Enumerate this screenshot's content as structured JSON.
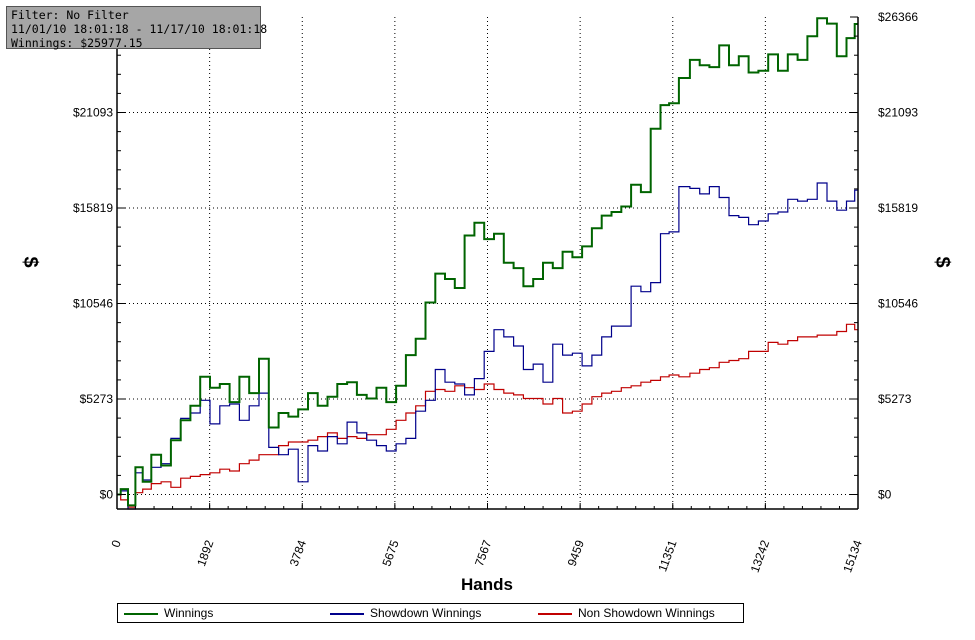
{
  "info": {
    "filter": "Filter: No Filter",
    "range": "11/01/10 18:01:18 - 11/17/10 18:01:18",
    "winnings": "Winnings: $25977.15"
  },
  "legend": [
    {
      "label": "Winnings",
      "color": "#006400"
    },
    {
      "label": "Showdown Winnings",
      "color": "#00008b"
    },
    {
      "label": "Non Showdown Winnings",
      "color": "#c00000"
    }
  ],
  "chart_data": {
    "type": "line",
    "xlabel": "Hands",
    "ylabel": "$",
    "ylabel_right": "$",
    "xlim": [
      0,
      15134
    ],
    "ylim": [
      -800,
      26366
    ],
    "x_ticks": [
      "0",
      "1892",
      "3784",
      "5675",
      "7567",
      "9459",
      "11351",
      "13242",
      "15134"
    ],
    "y_ticks": [
      "$0",
      "$5273",
      "$10546",
      "$15819",
      "$21093",
      "$26366"
    ],
    "y_tick_values": [
      0,
      5273,
      10546,
      15819,
      21093,
      26366
    ],
    "grid": true,
    "legend_position": "bottom",
    "series": [
      {
        "name": "Winnings",
        "color": "#006400",
        "x": [
          0,
          150,
          300,
          450,
          600,
          800,
          1000,
          1200,
          1400,
          1600,
          1800,
          2000,
          2200,
          2400,
          2600,
          2800,
          3000,
          3200,
          3400,
          3600,
          3800,
          4000,
          4200,
          4400,
          4600,
          4800,
          5000,
          5200,
          5400,
          5600,
          5800,
          6000,
          6200,
          6400,
          6600,
          6800,
          7000,
          7200,
          7400,
          7600,
          7800,
          8000,
          8200,
          8400,
          8600,
          8800,
          9000,
          9200,
          9400,
          9600,
          9800,
          10000,
          10200,
          10400,
          10600,
          10800,
          11000,
          11200,
          11351,
          11600,
          11800,
          12000,
          12200,
          12400,
          12600,
          12800,
          13000,
          13200,
          13400,
          13600,
          13800,
          14000,
          14200,
          14400,
          14600,
          14800,
          15000,
          15134
        ],
        "y": [
          0,
          300,
          -600,
          1500,
          700,
          2200,
          1600,
          3000,
          4100,
          4900,
          6500,
          5900,
          6100,
          5100,
          6500,
          5600,
          7500,
          3700,
          4500,
          4300,
          4700,
          5600,
          4900,
          5400,
          6100,
          6200,
          5500,
          5300,
          5900,
          5100,
          6000,
          7700,
          8600,
          10600,
          12200,
          11900,
          11400,
          14300,
          15000,
          14100,
          14400,
          12800,
          12500,
          11500,
          11900,
          12800,
          12500,
          13400,
          13100,
          13700,
          14700,
          15400,
          15600,
          15900,
          17100,
          16700,
          20200,
          21500,
          21600,
          23000,
          24000,
          23700,
          23600,
          24800,
          23700,
          24200,
          23300,
          23400,
          24300,
          23400,
          24300,
          24000,
          25300,
          26300,
          26000,
          24200,
          25200,
          25977
        ]
      },
      {
        "name": "Showdown Winnings",
        "color": "#00008b",
        "x": [
          0,
          150,
          300,
          450,
          600,
          800,
          1000,
          1200,
          1400,
          1600,
          1800,
          2000,
          2200,
          2400,
          2600,
          2800,
          3000,
          3200,
          3400,
          3600,
          3800,
          4000,
          4200,
          4400,
          4600,
          4800,
          5000,
          5200,
          5400,
          5600,
          5800,
          6000,
          6200,
          6400,
          6600,
          6800,
          7000,
          7200,
          7400,
          7600,
          7800,
          8000,
          8200,
          8400,
          8600,
          8800,
          9000,
          9200,
          9400,
          9600,
          9800,
          10000,
          10200,
          10400,
          10600,
          10800,
          11000,
          11200,
          11351,
          11600,
          11800,
          12000,
          12200,
          12400,
          12600,
          12800,
          13000,
          13200,
          13400,
          13600,
          13800,
          14000,
          14200,
          14400,
          14600,
          14800,
          15000,
          15134
        ],
        "y": [
          0,
          200,
          -800,
          1200,
          800,
          1500,
          1700,
          3100,
          4200,
          4500,
          5200,
          3900,
          4900,
          5000,
          4100,
          4900,
          5600,
          2600,
          2200,
          2500,
          700,
          2700,
          2400,
          3200,
          2800,
          4000,
          3400,
          3000,
          2700,
          2400,
          2800,
          3100,
          4600,
          5200,
          6900,
          6200,
          6100,
          5500,
          6400,
          7900,
          9100,
          8700,
          8200,
          6900,
          7200,
          6200,
          8300,
          7700,
          7800,
          7100,
          7700,
          8700,
          9300,
          9300,
          11500,
          11200,
          11700,
          14400,
          14500,
          17000,
          16900,
          16600,
          17000,
          16400,
          15400,
          15300,
          14900,
          15100,
          15500,
          15600,
          16300,
          16200,
          16300,
          17200,
          16200,
          15700,
          16200,
          16800
        ]
      },
      {
        "name": "Non Showdown Winnings",
        "color": "#c00000",
        "x": [
          0,
          150,
          300,
          450,
          600,
          800,
          1000,
          1200,
          1400,
          1600,
          1800,
          2000,
          2200,
          2400,
          2600,
          2800,
          3000,
          3200,
          3400,
          3600,
          3800,
          4000,
          4200,
          4400,
          4600,
          4800,
          5000,
          5200,
          5400,
          5600,
          5800,
          6000,
          6200,
          6400,
          6600,
          6800,
          7000,
          7200,
          7400,
          7600,
          7800,
          8000,
          8200,
          8400,
          8600,
          8800,
          9000,
          9200,
          9400,
          9600,
          9800,
          10000,
          10200,
          10400,
          10600,
          10800,
          11000,
          11200,
          11351,
          11600,
          11800,
          12000,
          12200,
          12400,
          12600,
          12800,
          13000,
          13200,
          13400,
          13600,
          13800,
          14000,
          14200,
          14400,
          14600,
          14800,
          15000,
          15134
        ],
        "y": [
          0,
          -300,
          -700,
          100,
          300,
          600,
          700,
          400,
          900,
          1000,
          1100,
          1200,
          1400,
          1300,
          1700,
          1900,
          2200,
          2200,
          2700,
          2900,
          2900,
          3000,
          3200,
          3400,
          3100,
          3200,
          3100,
          3300,
          3300,
          3600,
          4100,
          4500,
          4900,
          5700,
          5800,
          5700,
          6000,
          5900,
          5800,
          6100,
          5800,
          5600,
          5500,
          5300,
          5300,
          5000,
          5300,
          4500,
          4600,
          5000,
          5400,
          5600,
          5700,
          5900,
          6000,
          6200,
          6300,
          6500,
          6600,
          6500,
          6700,
          6900,
          7000,
          7300,
          7400,
          7500,
          7900,
          7900,
          8400,
          8300,
          8500,
          8700,
          8700,
          8800,
          8800,
          9000,
          9400,
          9100
        ]
      }
    ]
  }
}
